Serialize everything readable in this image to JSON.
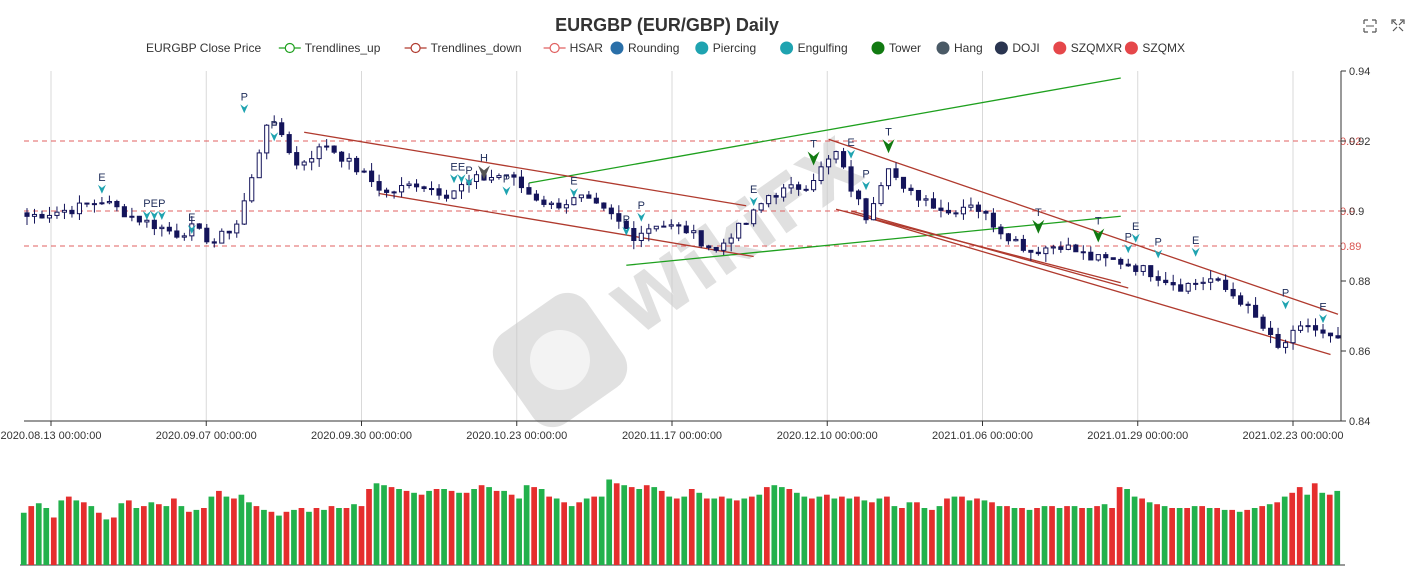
{
  "colors": {
    "up": "#22b14c",
    "down": "#e52e2e",
    "candle_up": "#ffffff",
    "candle_down": "#14145a",
    "trend_up": "#1ea01e",
    "trend_down": "#b03a2e",
    "level": "#e06060",
    "marker_teal": "#1fa3b0",
    "marker_green": "#117a11",
    "marker_grey": "#555555",
    "grid": "#d9d9d9"
  },
  "toolbar": {
    "zoom_icon": "zoom-area-icon",
    "restore_icon": "restore-icon"
  },
  "chart_data": {
    "type": "candlestick",
    "title": "EURGBP (EUR/GBP) Daily",
    "legend": [
      {
        "label": "EURGBP Close Price",
        "icon": "none",
        "color": "#333333"
      },
      {
        "label": "Trendlines_up",
        "icon": "line-circle",
        "color": "#1ea01e"
      },
      {
        "label": "Trendlines_down",
        "icon": "line-circle",
        "color": "#b03a2e"
      },
      {
        "label": "HSAR",
        "icon": "line-circle",
        "color": "#e06060"
      },
      {
        "label": "Rounding",
        "icon": "dot",
        "color": "#2a6fa8"
      },
      {
        "label": "Piercing",
        "icon": "dot",
        "color": "#1fa3b0"
      },
      {
        "label": "Engulfing",
        "icon": "dot",
        "color": "#1fa3b0"
      },
      {
        "label": "Tower",
        "icon": "dot",
        "color": "#117a11"
      },
      {
        "label": "Hang",
        "icon": "dot",
        "color": "#4a5a66"
      },
      {
        "label": "DOJI",
        "icon": "dot",
        "color": "#2a3550"
      },
      {
        "label": "SZQMXR",
        "icon": "dot",
        "color": "#e5474a"
      },
      {
        "label": "SZQMX",
        "icon": "dot",
        "color": "#e5474a"
      }
    ],
    "legend_position": "top-center",
    "ylim": [
      0.84,
      0.94
    ],
    "y_ticks": [
      "0.84",
      "0.86",
      "0.88",
      "0.9",
      "0.92",
      "0.94"
    ],
    "x_ticks": [
      "2020.08.13 00:00:00",
      "2020.09.07 00:00:00",
      "2020.09.30 00:00:00",
      "2020.10.23 00:00:00",
      "2020.11.17 00:00:00",
      "2020.12.10 00:00:00",
      "2021.01.06 00:00:00",
      "2021.01.29 00:00:00",
      "2021.02.23 00:00:00"
    ],
    "grid": true,
    "hsar_levels": [
      {
        "value": 0.92,
        "label": "0.92"
      },
      {
        "value": 0.9,
        "label": "0.9"
      },
      {
        "value": 0.89,
        "label": "0.89"
      }
    ],
    "bars": 176,
    "x_range_index": [
      0,
      175
    ],
    "close_anchors": [
      [
        0,
        0.8985
      ],
      [
        6,
        0.9005
      ],
      [
        10,
        0.903
      ],
      [
        14,
        0.8985
      ],
      [
        20,
        0.8935
      ],
      [
        22,
        0.895
      ],
      [
        25,
        0.891
      ],
      [
        28,
        0.8965
      ],
      [
        30,
        0.909
      ],
      [
        32,
        0.9255
      ],
      [
        34,
        0.922
      ],
      [
        36,
        0.913
      ],
      [
        40,
        0.919
      ],
      [
        44,
        0.912
      ],
      [
        48,
        0.905
      ],
      [
        52,
        0.908
      ],
      [
        56,
        0.905
      ],
      [
        60,
        0.909
      ],
      [
        64,
        0.9105
      ],
      [
        67,
        0.905
      ],
      [
        70,
        0.9015
      ],
      [
        74,
        0.9035
      ],
      [
        78,
        0.8985
      ],
      [
        81,
        0.893
      ],
      [
        84,
        0.8965
      ],
      [
        88,
        0.8945
      ],
      [
        92,
        0.8885
      ],
      [
        94,
        0.8935
      ],
      [
        96,
        0.8965
      ],
      [
        99,
        0.9045
      ],
      [
        104,
        0.9075
      ],
      [
        108,
        0.9165
      ],
      [
        110,
        0.9065
      ],
      [
        112,
        0.8985
      ],
      [
        115,
        0.9135
      ],
      [
        117,
        0.9055
      ],
      [
        120,
        0.9035
      ],
      [
        123,
        0.8995
      ],
      [
        126,
        0.9025
      ],
      [
        130,
        0.8945
      ],
      [
        134,
        0.8885
      ],
      [
        138,
        0.8905
      ],
      [
        142,
        0.8865
      ],
      [
        146,
        0.8855
      ],
      [
        150,
        0.8825
      ],
      [
        154,
        0.8785
      ],
      [
        158,
        0.8805
      ],
      [
        162,
        0.8745
      ],
      [
        165,
        0.8665
      ],
      [
        167,
        0.8605
      ],
      [
        169,
        0.8645
      ],
      [
        171,
        0.8675
      ],
      [
        173,
        0.8645
      ],
      [
        175,
        0.8625
      ]
    ],
    "trendlines_up": [
      {
        "x": [
          67,
          146
        ],
        "y": [
          0.908,
          0.938
        ]
      },
      {
        "x": [
          80,
          146
        ],
        "y": [
          0.8845,
          0.8985
        ]
      }
    ],
    "trendlines_down": [
      {
        "x": [
          37,
          96
        ],
        "y": [
          0.9225,
          0.9015
        ]
      },
      {
        "x": [
          47,
          97
        ],
        "y": [
          0.905,
          0.887
        ]
      },
      {
        "x": [
          107,
          175
        ],
        "y": [
          0.9205,
          0.8705
        ]
      },
      {
        "x": [
          110,
          147
        ],
        "y": [
          0.9,
          0.878
        ]
      },
      {
        "x": [
          110,
          174
        ],
        "y": [
          0.8995,
          0.859
        ]
      },
      {
        "x": [
          108,
          146
        ],
        "y": [
          0.9005,
          0.8795
        ]
      }
    ],
    "annotations": [
      {
        "x": 10,
        "y": 0.9075,
        "label": "E",
        "kind": "teal"
      },
      {
        "x": 16,
        "y": 0.9,
        "label": "P",
        "kind": "teal"
      },
      {
        "x": 17,
        "y": 0.9,
        "label": "E",
        "kind": "teal"
      },
      {
        "x": 18,
        "y": 0.9,
        "label": "P",
        "kind": "teal"
      },
      {
        "x": 22,
        "y": 0.896,
        "label": "E",
        "kind": "teal"
      },
      {
        "x": 29,
        "y": 0.9305,
        "label": "P",
        "kind": "teal"
      },
      {
        "x": 33,
        "y": 0.9225,
        "label": "P",
        "kind": "teal"
      },
      {
        "x": 57,
        "y": 0.9105,
        "label": "E",
        "kind": "teal"
      },
      {
        "x": 58,
        "y": 0.9105,
        "label": "E",
        "kind": "teal"
      },
      {
        "x": 59,
        "y": 0.9095,
        "label": "P",
        "kind": "teal"
      },
      {
        "x": 61,
        "y": 0.913,
        "label": "H",
        "kind": "grey"
      },
      {
        "x": 64,
        "y": 0.907,
        "label": "P",
        "kind": "teal"
      },
      {
        "x": 73,
        "y": 0.9065,
        "label": "E",
        "kind": "teal"
      },
      {
        "x": 80,
        "y": 0.8955,
        "label": "P",
        "kind": "teal"
      },
      {
        "x": 82,
        "y": 0.8995,
        "label": "P",
        "kind": "teal"
      },
      {
        "x": 97,
        "y": 0.904,
        "label": "E",
        "kind": "teal"
      },
      {
        "x": 105,
        "y": 0.917,
        "label": "T",
        "kind": "green"
      },
      {
        "x": 110,
        "y": 0.9175,
        "label": "E",
        "kind": "teal"
      },
      {
        "x": 112,
        "y": 0.9085,
        "label": "P",
        "kind": "teal"
      },
      {
        "x": 115,
        "y": 0.9205,
        "label": "T",
        "kind": "green"
      },
      {
        "x": 135,
        "y": 0.8975,
        "label": "T",
        "kind": "green"
      },
      {
        "x": 143,
        "y": 0.895,
        "label": "T",
        "kind": "green"
      },
      {
        "x": 147,
        "y": 0.8905,
        "label": "P",
        "kind": "teal"
      },
      {
        "x": 148,
        "y": 0.8935,
        "label": "E",
        "kind": "teal"
      },
      {
        "x": 151,
        "y": 0.889,
        "label": "P",
        "kind": "teal"
      },
      {
        "x": 156,
        "y": 0.8895,
        "label": "E",
        "kind": "teal"
      },
      {
        "x": 168,
        "y": 0.8745,
        "label": "P",
        "kind": "teal"
      },
      {
        "x": 173,
        "y": 0.8705,
        "label": "E",
        "kind": "teal"
      }
    ],
    "volume_pattern_note": "",
    "volume": [
      [
        1,
        0.55
      ],
      [
        0,
        0.62
      ],
      [
        1,
        0.65
      ],
      [
        1,
        0.6
      ],
      [
        0,
        0.5
      ],
      [
        1,
        0.68
      ],
      [
        0,
        0.72
      ],
      [
        1,
        0.68
      ],
      [
        0,
        0.66
      ],
      [
        1,
        0.62
      ],
      [
        0,
        0.55
      ],
      [
        1,
        0.48
      ],
      [
        0,
        0.5
      ],
      [
        1,
        0.65
      ],
      [
        0,
        0.68
      ],
      [
        1,
        0.6
      ],
      [
        0,
        0.62
      ],
      [
        1,
        0.66
      ],
      [
        0,
        0.64
      ],
      [
        1,
        0.62
      ],
      [
        0,
        0.7
      ],
      [
        1,
        0.62
      ],
      [
        0,
        0.56
      ],
      [
        1,
        0.58
      ],
      [
        0,
        0.6
      ],
      [
        1,
        0.72
      ],
      [
        0,
        0.78
      ],
      [
        1,
        0.72
      ],
      [
        0,
        0.7
      ],
      [
        1,
        0.74
      ],
      [
        1,
        0.66
      ],
      [
        0,
        0.62
      ],
      [
        1,
        0.58
      ],
      [
        0,
        0.56
      ],
      [
        1,
        0.52
      ],
      [
        0,
        0.56
      ],
      [
        1,
        0.58
      ],
      [
        0,
        0.6
      ],
      [
        1,
        0.56
      ],
      [
        0,
        0.6
      ],
      [
        1,
        0.58
      ],
      [
        0,
        0.62
      ],
      [
        1,
        0.6
      ],
      [
        0,
        0.6
      ],
      [
        1,
        0.64
      ],
      [
        0,
        0.62
      ],
      [
        0,
        0.8
      ],
      [
        1,
        0.86
      ],
      [
        1,
        0.84
      ],
      [
        0,
        0.82
      ],
      [
        1,
        0.8
      ],
      [
        0,
        0.78
      ],
      [
        1,
        0.76
      ],
      [
        0,
        0.74
      ],
      [
        1,
        0.78
      ],
      [
        0,
        0.8
      ],
      [
        1,
        0.8
      ],
      [
        0,
        0.78
      ],
      [
        1,
        0.76
      ],
      [
        0,
        0.76
      ],
      [
        1,
        0.8
      ],
      [
        0,
        0.84
      ],
      [
        1,
        0.82
      ],
      [
        0,
        0.78
      ],
      [
        1,
        0.78
      ],
      [
        0,
        0.74
      ],
      [
        1,
        0.7
      ],
      [
        1,
        0.84
      ],
      [
        0,
        0.82
      ],
      [
        1,
        0.8
      ],
      [
        0,
        0.72
      ],
      [
        1,
        0.7
      ],
      [
        0,
        0.66
      ],
      [
        1,
        0.62
      ],
      [
        0,
        0.66
      ],
      [
        1,
        0.7
      ],
      [
        0,
        0.72
      ],
      [
        1,
        0.72
      ],
      [
        1,
        0.9
      ],
      [
        0,
        0.86
      ],
      [
        1,
        0.84
      ],
      [
        0,
        0.82
      ],
      [
        1,
        0.8
      ],
      [
        0,
        0.84
      ],
      [
        1,
        0.82
      ],
      [
        0,
        0.78
      ],
      [
        1,
        0.72
      ],
      [
        0,
        0.7
      ],
      [
        1,
        0.72
      ],
      [
        0,
        0.8
      ],
      [
        1,
        0.76
      ],
      [
        0,
        0.7
      ],
      [
        1,
        0.7
      ],
      [
        0,
        0.72
      ],
      [
        1,
        0.7
      ],
      [
        0,
        0.68
      ],
      [
        1,
        0.7
      ],
      [
        0,
        0.72
      ],
      [
        1,
        0.74
      ],
      [
        0,
        0.82
      ],
      [
        1,
        0.84
      ],
      [
        1,
        0.82
      ],
      [
        0,
        0.8
      ],
      [
        1,
        0.76
      ],
      [
        1,
        0.72
      ],
      [
        0,
        0.7
      ],
      [
        1,
        0.72
      ],
      [
        0,
        0.74
      ],
      [
        1,
        0.7
      ],
      [
        0,
        0.72
      ],
      [
        1,
        0.7
      ],
      [
        0,
        0.72
      ],
      [
        1,
        0.68
      ],
      [
        0,
        0.66
      ],
      [
        1,
        0.7
      ],
      [
        0,
        0.72
      ],
      [
        1,
        0.62
      ],
      [
        0,
        0.6
      ],
      [
        1,
        0.66
      ],
      [
        0,
        0.66
      ],
      [
        1,
        0.6
      ],
      [
        0,
        0.58
      ],
      [
        1,
        0.62
      ],
      [
        0,
        0.7
      ],
      [
        1,
        0.72
      ],
      [
        0,
        0.72
      ],
      [
        1,
        0.68
      ],
      [
        0,
        0.7
      ],
      [
        1,
        0.68
      ],
      [
        0,
        0.66
      ],
      [
        1,
        0.62
      ],
      [
        0,
        0.62
      ],
      [
        1,
        0.6
      ],
      [
        0,
        0.6
      ],
      [
        1,
        0.58
      ],
      [
        0,
        0.6
      ],
      [
        1,
        0.62
      ],
      [
        0,
        0.62
      ],
      [
        1,
        0.6
      ],
      [
        0,
        0.62
      ],
      [
        1,
        0.62
      ],
      [
        0,
        0.6
      ],
      [
        1,
        0.6
      ],
      [
        0,
        0.62
      ],
      [
        1,
        0.64
      ],
      [
        0,
        0.6
      ],
      [
        0,
        0.82
      ],
      [
        1,
        0.8
      ],
      [
        1,
        0.72
      ],
      [
        0,
        0.7
      ],
      [
        1,
        0.66
      ],
      [
        0,
        0.64
      ],
      [
        1,
        0.62
      ],
      [
        0,
        0.6
      ],
      [
        1,
        0.6
      ],
      [
        0,
        0.6
      ],
      [
        1,
        0.62
      ],
      [
        0,
        0.62
      ],
      [
        1,
        0.6
      ],
      [
        0,
        0.6
      ],
      [
        1,
        0.58
      ],
      [
        0,
        0.58
      ],
      [
        1,
        0.56
      ],
      [
        0,
        0.58
      ],
      [
        1,
        0.6
      ],
      [
        0,
        0.62
      ],
      [
        1,
        0.64
      ],
      [
        0,
        0.66
      ],
      [
        1,
        0.72
      ],
      [
        0,
        0.76
      ],
      [
        0,
        0.82
      ],
      [
        1,
        0.74
      ],
      [
        0,
        0.86
      ],
      [
        1,
        0.76
      ],
      [
        0,
        0.74
      ],
      [
        1,
        0.78
      ]
    ]
  },
  "watermark": "WikiFX"
}
